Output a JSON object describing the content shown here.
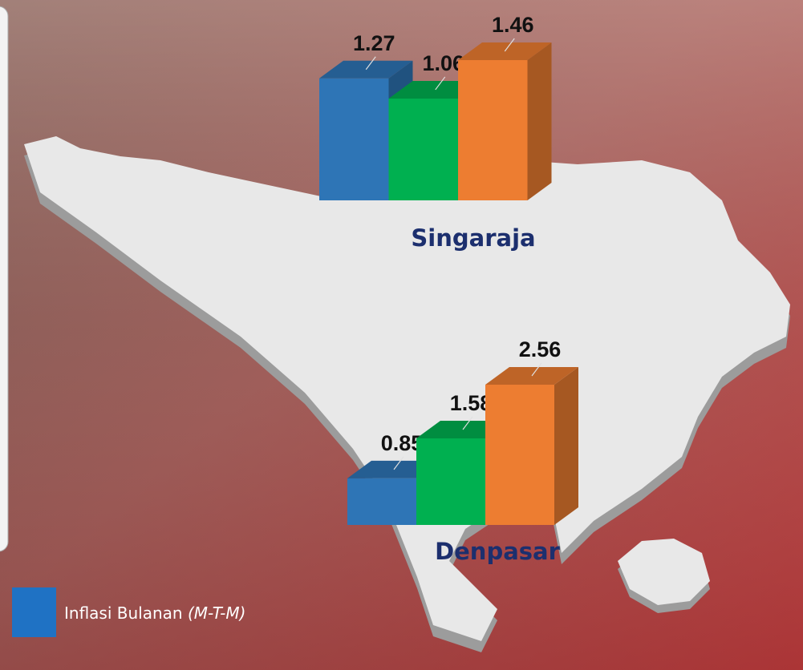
{
  "chart_data": [
    {
      "type": "bar",
      "title": "Singaraja",
      "values": [
        1.27,
        1.06,
        1.46
      ],
      "colors": [
        "#2e75b6",
        "#00b050",
        "#ed7d31"
      ]
    },
    {
      "type": "bar",
      "title": "Denpasar",
      "values": [
        0.85,
        1.58,
        2.56
      ],
      "colors": [
        "#2e75b6",
        "#00b050",
        "#ed7d31"
      ]
    }
  ],
  "legend": {
    "label": "Inflasi Bulanan",
    "note": "(M-T-M)",
    "color": "#1f72c4"
  }
}
